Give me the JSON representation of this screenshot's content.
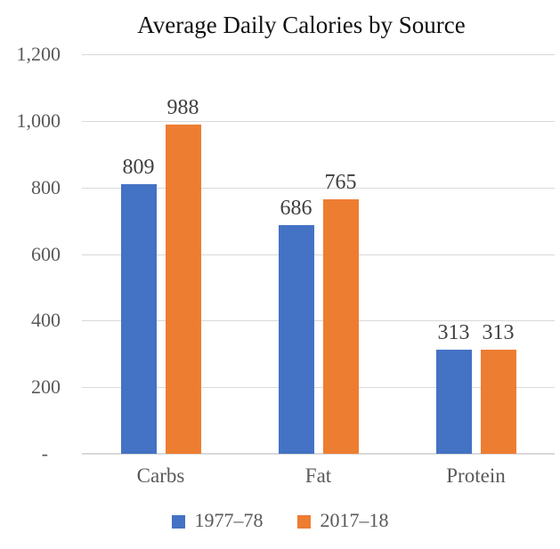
{
  "title": "Average Daily Calories by Source",
  "colors": {
    "series_1977": "#4472C4",
    "series_2017": "#ED7D31",
    "gridline": "#d9d9d9",
    "axis_text": "#595959",
    "value_label_text": "#3f3f3f",
    "title_text": "#111111",
    "background": "#ffffff"
  },
  "chart_data": {
    "type": "bar",
    "title": "Average Daily Calories by Source",
    "categories": [
      "Carbs",
      "Fat",
      "Protein"
    ],
    "series": [
      {
        "name": "1977–78",
        "color": "#4472C4",
        "values": [
          809,
          686,
          313
        ]
      },
      {
        "name": "2017–18",
        "color": "#ED7D31",
        "values": [
          988,
          765,
          313
        ]
      }
    ],
    "xlabel": "",
    "ylabel": "",
    "ylim": [
      0,
      1200
    ],
    "ytick_interval": 200,
    "yticks": [
      {
        "value": 0,
        "label": "-"
      },
      {
        "value": 200,
        "label": "200"
      },
      {
        "value": 400,
        "label": "400"
      },
      {
        "value": 600,
        "label": "600"
      },
      {
        "value": 800,
        "label": "800"
      },
      {
        "value": 1000,
        "label": "1,000"
      },
      {
        "value": 1200,
        "label": "1,200"
      }
    ],
    "grid": true,
    "data_labels": true,
    "legend_position": "bottom"
  },
  "legend": {
    "items": [
      {
        "label": "1977–78",
        "color": "#4472C4"
      },
      {
        "label": "2017–18",
        "color": "#ED7D31"
      }
    ]
  }
}
